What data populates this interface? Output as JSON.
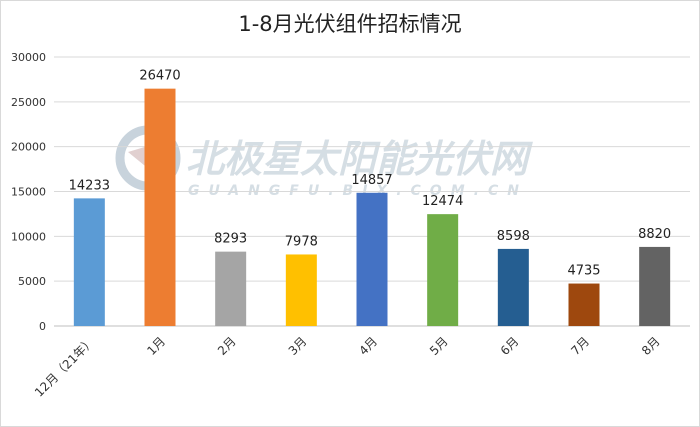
{
  "watermark": {
    "text": "北极星太阳能光伏网",
    "subtext": "GUANGFU.BJX.COM.CN",
    "color": "#c8d3dc"
  },
  "chart_data": {
    "type": "bar",
    "title": "1-8月光伏组件招标情况",
    "xlabel": "",
    "ylabel": "",
    "ylim": [
      0,
      30000
    ],
    "yticks": [
      "0",
      "5000",
      "10000",
      "15000",
      "20000",
      "25000",
      "30000"
    ],
    "grid": true,
    "categories": [
      "12月（21年）",
      "1月",
      "2月",
      "3月",
      "4月",
      "5月",
      "6月",
      "7月",
      "8月"
    ],
    "values": [
      14233,
      26470,
      8293,
      7978,
      14857,
      12474,
      8598,
      4735,
      8820
    ],
    "value_labels": [
      "14233",
      "26470",
      "8293",
      "7978",
      "14857",
      "12474",
      "8598",
      "4735",
      "8820"
    ],
    "colors": [
      "#5b9bd5",
      "#ed7d31",
      "#a5a5a5",
      "#ffc000",
      "#4472c4",
      "#70ad47",
      "#255e91",
      "#9e480e",
      "#636363"
    ]
  }
}
